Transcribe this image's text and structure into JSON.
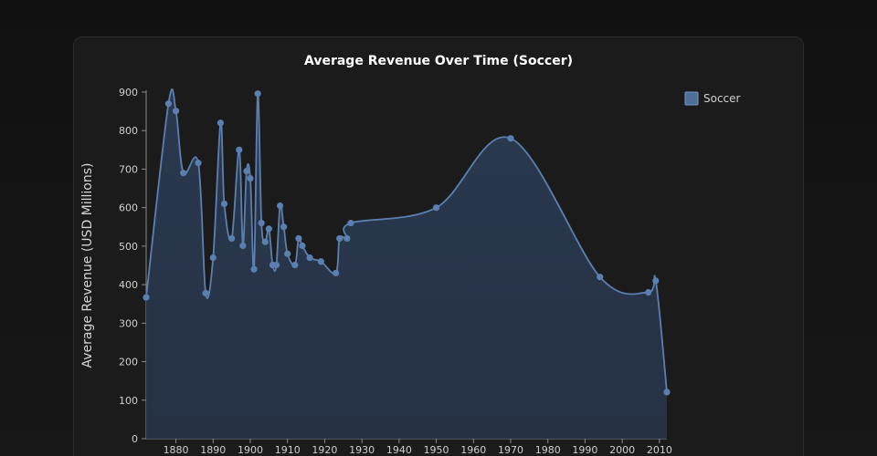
{
  "chart_data": {
    "type": "area",
    "title": "Average Revenue Over Time (Soccer)",
    "ylabel": "Average Revenue (USD Millions)",
    "xlabel": "",
    "xlim": [
      1872,
      2012
    ],
    "ylim": [
      0,
      900
    ],
    "x_ticks": [
      1880,
      1890,
      1900,
      1910,
      1920,
      1930,
      1940,
      1950,
      1960,
      1970,
      1980,
      1990,
      2000,
      2010
    ],
    "y_ticks": [
      0,
      100,
      200,
      300,
      400,
      500,
      600,
      700,
      800,
      900
    ],
    "grid": false,
    "legend": {
      "position": "top-right",
      "entries": [
        "Soccer"
      ]
    },
    "colors": {
      "line": "#5b80b0",
      "fill": "#2b3b52",
      "marker": "#5b80b0",
      "legend_swatch": "#4f6e98",
      "axis": "#8a8a8a"
    },
    "series": [
      {
        "name": "Soccer",
        "points": [
          [
            1872,
            367
          ],
          [
            1878,
            870
          ],
          [
            1880,
            851
          ],
          [
            1882,
            690
          ],
          [
            1886,
            716
          ],
          [
            1888,
            378
          ],
          [
            1890,
            470
          ],
          [
            1892,
            820
          ],
          [
            1893,
            610
          ],
          [
            1895,
            520
          ],
          [
            1897,
            750
          ],
          [
            1898,
            501
          ],
          [
            1899,
            695
          ],
          [
            1900,
            676
          ],
          [
            1901,
            440
          ],
          [
            1902,
            896
          ],
          [
            1903,
            560
          ],
          [
            1904,
            511
          ],
          [
            1905,
            545
          ],
          [
            1906,
            451
          ],
          [
            1907,
            451
          ],
          [
            1908,
            605
          ],
          [
            1909,
            550
          ],
          [
            1910,
            480
          ],
          [
            1912,
            451
          ],
          [
            1913,
            520
          ],
          [
            1914,
            501
          ],
          [
            1916,
            470
          ],
          [
            1919,
            460
          ],
          [
            1923,
            430
          ],
          [
            1924,
            520
          ],
          [
            1926,
            520
          ],
          [
            1927,
            560
          ],
          [
            1950,
            600
          ],
          [
            1970,
            780
          ],
          [
            1994,
            420
          ],
          [
            2007,
            380
          ],
          [
            2009,
            410
          ],
          [
            2012,
            121
          ]
        ]
      }
    ]
  }
}
